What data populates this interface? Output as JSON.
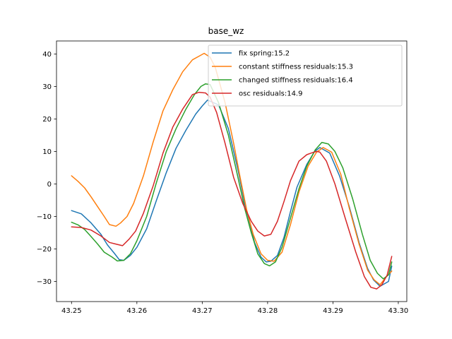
{
  "chart_data": {
    "type": "line",
    "title": "base_wz",
    "xlabel": "",
    "ylabel": "",
    "xlim": [
      43.2477,
      43.3013
    ],
    "ylim": [
      -36.2,
      44.0
    ],
    "grid": false,
    "legend_position": "top-right",
    "x_ticks": [
      43.25,
      43.26,
      43.27,
      43.28,
      43.29,
      43.3
    ],
    "x_tick_labels": [
      "43.25",
      "43.26",
      "43.27",
      "43.28",
      "43.29",
      "43.30"
    ],
    "y_ticks": [
      -30,
      -20,
      -10,
      0,
      10,
      20,
      30,
      40
    ],
    "y_tick_labels": [
      "−30",
      "−20",
      "−10",
      "0",
      "10",
      "20",
      "30",
      "40"
    ],
    "series": [
      {
        "name": "fix spring:15.2",
        "color": "#1f77b4",
        "x": [
          43.25,
          43.2515,
          43.253,
          43.2545,
          43.2555,
          43.2565,
          43.2573,
          43.258,
          43.259,
          43.26,
          43.2615,
          43.263,
          43.2645,
          43.266,
          43.2675,
          43.269,
          43.27,
          43.2708,
          43.2725,
          43.274,
          43.2755,
          43.2765,
          43.2775,
          43.278,
          43.279,
          43.2798,
          43.2805,
          43.2815,
          43.2825,
          43.2835,
          43.2845,
          43.286,
          43.2872,
          43.288,
          43.2895,
          43.291,
          43.2925,
          43.294,
          43.2953,
          43.2962,
          43.2972,
          43.2985,
          43.299
        ],
        "y": [
          -8.2,
          -9.2,
          -12.0,
          -15.5,
          -18.8,
          -21.2,
          -23.3,
          -23.5,
          -22.0,
          -19.5,
          -13.8,
          -5.0,
          3.5,
          11.0,
          16.5,
          21.5,
          24.0,
          25.8,
          24.3,
          17.0,
          4.0,
          -6.0,
          -13.8,
          -18.0,
          -22.5,
          -24.0,
          -23.8,
          -22.0,
          -16.5,
          -8.5,
          -1.0,
          6.0,
          10.0,
          11.2,
          9.5,
          2.5,
          -7.0,
          -18.0,
          -26.0,
          -29.5,
          -31.5,
          -30.0,
          -25.3
        ]
      },
      {
        "name": "constant stiffness residuals:15.3",
        "color": "#ff7f0e",
        "x": [
          43.25,
          43.251,
          43.252,
          43.253,
          43.254,
          43.255,
          43.2558,
          43.2568,
          43.2575,
          43.2585,
          43.2595,
          43.261,
          43.2625,
          43.264,
          43.2655,
          43.267,
          43.2685,
          43.2695,
          43.2703,
          43.2712,
          43.272,
          43.2735,
          43.2748,
          43.2758,
          43.2768,
          43.2778,
          43.279,
          43.28,
          43.281,
          43.2822,
          43.2835,
          43.2848,
          43.2862,
          43.2875,
          43.2885,
          43.2898,
          43.2912,
          43.2925,
          43.294,
          43.2953,
          43.2963,
          43.2972,
          43.2982,
          43.299
        ],
        "y": [
          2.5,
          0.8,
          -1.2,
          -4.0,
          -7.0,
          -10.0,
          -12.5,
          -13.0,
          -12.0,
          -10.0,
          -6.0,
          2.5,
          13.0,
          22.5,
          29.0,
          34.5,
          38.2,
          39.3,
          40.2,
          39.0,
          35.8,
          25.0,
          12.5,
          2.0,
          -8.0,
          -15.5,
          -21.5,
          -23.5,
          -23.8,
          -21.0,
          -12.5,
          -2.5,
          5.5,
          9.8,
          11.2,
          9.8,
          3.0,
          -7.5,
          -18.5,
          -26.5,
          -29.5,
          -31.0,
          -28.5,
          -26.8
        ]
      },
      {
        "name": "changed stiffness residuals:16.4",
        "color": "#2ca02c",
        "x": [
          43.25,
          43.251,
          43.252,
          43.253,
          43.254,
          43.255,
          43.2562,
          43.257,
          43.258,
          43.259,
          43.26,
          43.2615,
          43.263,
          43.2645,
          43.266,
          43.2675,
          43.2688,
          43.2698,
          43.2705,
          43.2712,
          43.2725,
          43.274,
          43.2753,
          43.2765,
          43.2775,
          43.2785,
          43.2795,
          43.2803,
          43.2812,
          43.2822,
          43.2835,
          43.2848,
          43.286,
          43.2873,
          43.2883,
          43.2893,
          43.2903,
          43.2915,
          43.293,
          43.2945,
          43.2957,
          43.2968,
          43.2977,
          43.2985,
          43.299
        ],
        "y": [
          -11.8,
          -12.6,
          -14.0,
          -16.2,
          -18.5,
          -21.0,
          -22.5,
          -23.7,
          -23.5,
          -21.5,
          -17.5,
          -10.0,
          0.5,
          10.0,
          17.0,
          23.0,
          27.5,
          30.0,
          30.8,
          30.6,
          25.0,
          15.0,
          3.5,
          -7.5,
          -15.0,
          -21.5,
          -24.5,
          -25.2,
          -24.0,
          -19.5,
          -10.5,
          -1.5,
          5.5,
          10.5,
          12.8,
          12.3,
          10.0,
          5.0,
          -4.5,
          -15.5,
          -23.5,
          -27.5,
          -29.2,
          -28.0,
          -24.0
        ]
      },
      {
        "name": "osc residuals:14.9",
        "color": "#d62728",
        "x": [
          43.25,
          43.2515,
          43.253,
          43.2545,
          43.2558,
          43.2568,
          43.2578,
          43.2588,
          43.2598,
          43.261,
          43.2625,
          43.264,
          43.2655,
          43.267,
          43.2685,
          43.2695,
          43.2705,
          43.2712,
          43.2722,
          43.2735,
          43.2748,
          43.2762,
          43.2775,
          43.2785,
          43.2795,
          43.2805,
          43.2815,
          43.2825,
          43.2835,
          43.2848,
          43.286,
          43.2868,
          43.2875,
          43.288,
          43.289,
          43.2903,
          43.2918,
          43.2935,
          43.2948,
          43.2958,
          43.2967,
          43.2975,
          43.2983,
          43.299
        ],
        "y": [
          -13.2,
          -13.4,
          -14.2,
          -16.0,
          -18.0,
          -18.5,
          -19.0,
          -17.0,
          -14.5,
          -9.0,
          -0.5,
          9.5,
          17.5,
          23.0,
          27.5,
          28.2,
          28.0,
          26.7,
          22.0,
          12.5,
          2.0,
          -6.0,
          -11.5,
          -14.5,
          -16.0,
          -15.5,
          -11.5,
          -5.5,
          1.0,
          7.0,
          9.0,
          9.6,
          10.0,
          9.8,
          7.0,
          0.0,
          -10.0,
          -21.0,
          -28.5,
          -31.8,
          -32.3,
          -31.0,
          -28.0,
          -22.3
        ]
      }
    ]
  }
}
